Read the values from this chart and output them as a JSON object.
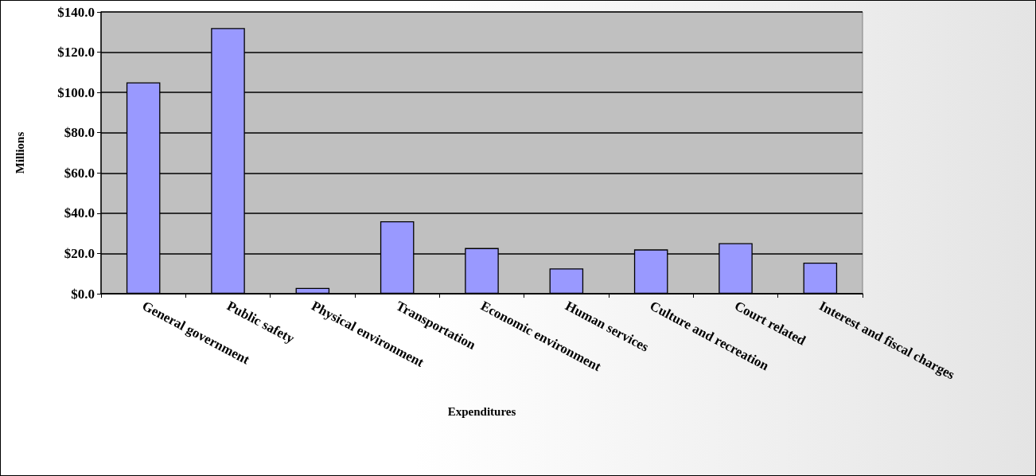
{
  "chart_data": {
    "type": "bar",
    "xlabel": "Expenditures",
    "ylabel": "Millions",
    "categories": [
      "General government",
      "Public safety",
      "Physical environment",
      "Transportation",
      "Economic environment",
      "Human services",
      "Culture and recreation",
      "Court related",
      "Interest and fiscal charges"
    ],
    "values": [
      105,
      132,
      2.9,
      36,
      22.7,
      12.6,
      22,
      25.1,
      15.4
    ],
    "color": "#9999ff",
    "ylim": [
      0,
      140
    ],
    "yticks": [
      {
        "value": 0,
        "label": "$0.0"
      },
      {
        "value": 20,
        "label": "$20.0"
      },
      {
        "value": 40,
        "label": "$40.0"
      },
      {
        "value": 60,
        "label": "$60.0"
      },
      {
        "value": 80,
        "label": "$80.0"
      },
      {
        "value": 100,
        "label": "$100.0"
      },
      {
        "value": 120,
        "label": "$120.0"
      },
      {
        "value": 140,
        "label": "$140.0"
      }
    ],
    "grid": "y"
  }
}
